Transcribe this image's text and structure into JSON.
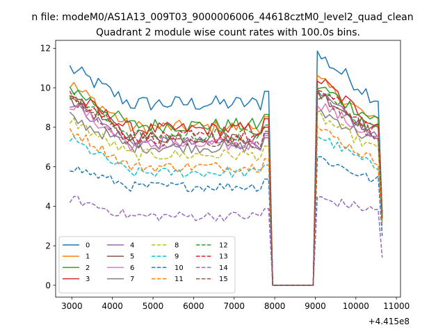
{
  "chart_data": {
    "type": "line",
    "suptitle": "n file: modeM0/AS1A13_009T03_9000006006_44618cztM0_level2_quad_clean",
    "title": "Quadrant 2 module wise count rates with 100.0s bins.",
    "xlabel": "",
    "ylabel": "",
    "x_offset_label": "+4.415e8",
    "xlim": [
      2600,
      11100
    ],
    "ylim": [
      -0.6,
      12.4
    ],
    "xticks": [
      3000,
      4000,
      5000,
      6000,
      7000,
      8000,
      9000,
      10000,
      11000
    ],
    "yticks": [
      0,
      2,
      4,
      6,
      8,
      10,
      12
    ],
    "grid": false,
    "legend": {
      "location": "lower left",
      "columns": 4
    },
    "series": [
      {
        "name": "0",
        "color": "#1f77b4",
        "style": "solid",
        "level": 9.2,
        "start": 11.0,
        "peak": 11.7,
        "end": 3.6
      },
      {
        "name": "1",
        "color": "#ff7f0e",
        "style": "solid",
        "level": 8.0,
        "start": 10.2,
        "peak": 10.4,
        "end": 3.5
      },
      {
        "name": "2",
        "color": "#2ca02c",
        "style": "solid",
        "level": 8.1,
        "start": 10.0,
        "peak": 10.1,
        "end": 3.4
      },
      {
        "name": "3",
        "color": "#d62728",
        "style": "solid",
        "level": 7.9,
        "start": 9.7,
        "peak": 10.5,
        "end": 3.6
      },
      {
        "name": "4",
        "color": "#9467bd",
        "style": "solid",
        "level": 7.2,
        "start": 9.3,
        "peak": 9.7,
        "end": 3.3
      },
      {
        "name": "5",
        "color": "#8c564b",
        "style": "solid",
        "level": 7.5,
        "start": 9.5,
        "peak": 9.8,
        "end": 3.4
      },
      {
        "name": "6",
        "color": "#e377c2",
        "style": "solid",
        "level": 7.1,
        "start": 9.2,
        "peak": 9.3,
        "end": 3.2
      },
      {
        "name": "7",
        "color": "#7f7f7f",
        "style": "solid",
        "level": 7.0,
        "start": 8.5,
        "peak": 8.9,
        "end": 3.3
      },
      {
        "name": "8",
        "color": "#bcbd22",
        "style": "dashed",
        "level": 6.6,
        "start": 8.4,
        "peak": 8.6,
        "end": 3.2
      },
      {
        "name": "9",
        "color": "#17becf",
        "style": "dashed",
        "level": 5.7,
        "start": 7.4,
        "peak": 7.6,
        "end": 2.9
      },
      {
        "name": "10",
        "color": "#1f77b4",
        "style": "dashed",
        "level": 5.0,
        "start": 6.0,
        "peak": 6.5,
        "end": 2.5
      },
      {
        "name": "11",
        "color": "#ff7f0e",
        "style": "dashed",
        "level": 6.0,
        "start": 7.9,
        "peak": 8.0,
        "end": 3.0
      },
      {
        "name": "12",
        "color": "#2ca02c",
        "style": "dashed",
        "level": 7.6,
        "start": 9.6,
        "peak": 9.9,
        "end": 3.4
      },
      {
        "name": "13",
        "color": "#d62728",
        "style": "dashed",
        "level": 7.5,
        "start": 9.9,
        "peak": 10.0,
        "end": 3.5
      },
      {
        "name": "14",
        "color": "#9467bd",
        "style": "dashed",
        "level": 3.5,
        "start": 4.4,
        "peak": 4.4,
        "end": 1.4
      },
      {
        "name": "15",
        "color": "#8c564b",
        "style": "dashed",
        "level": 7.3,
        "start": 9.4,
        "peak": 9.6,
        "end": 3.3
      }
    ],
    "time_bins": {
      "first": 2950,
      "step": 100,
      "gap_start": 7850,
      "gap_end": 9050,
      "gap_value": 0,
      "last": 10650
    }
  }
}
